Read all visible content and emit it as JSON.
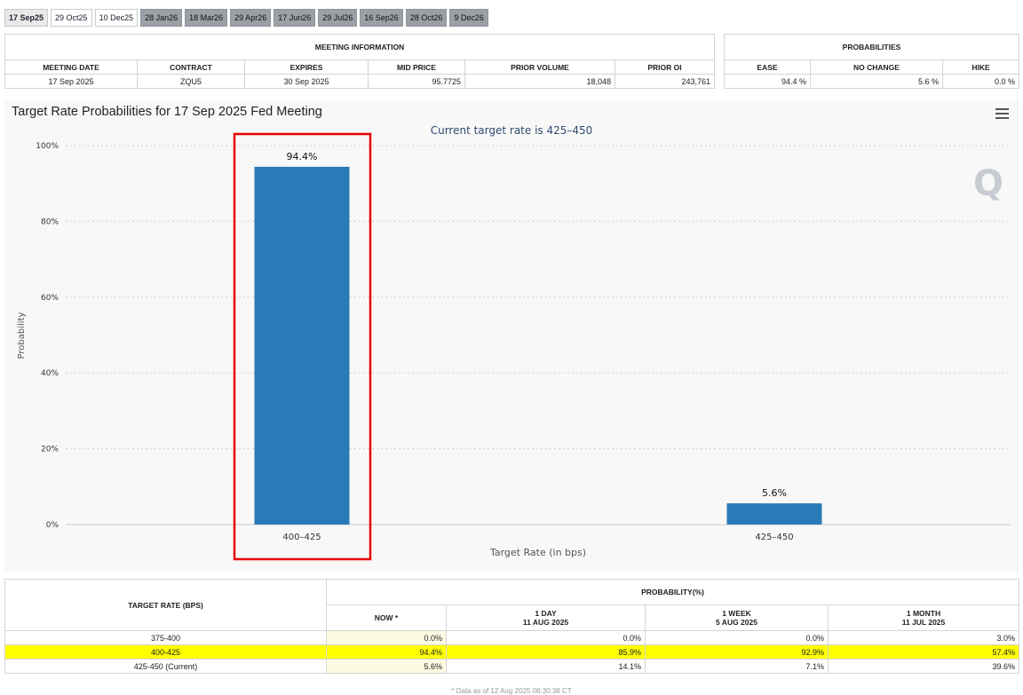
{
  "tabs": [
    {
      "label": "17 Sep25",
      "state": "active"
    },
    {
      "label": "29 Oct25",
      "state": "normal"
    },
    {
      "label": "10 Dec25",
      "state": "normal"
    },
    {
      "label": "28 Jan26",
      "state": "future"
    },
    {
      "label": "18 Mar26",
      "state": "future"
    },
    {
      "label": "29 Apr26",
      "state": "future"
    },
    {
      "label": "17 Jun26",
      "state": "future"
    },
    {
      "label": "29 Jul26",
      "state": "future"
    },
    {
      "label": "16 Sep26",
      "state": "future"
    },
    {
      "label": "28 Oct26",
      "state": "future"
    },
    {
      "label": "9 Dec26",
      "state": "future"
    }
  ],
  "meeting_info": {
    "header": "MEETING INFORMATION",
    "columns": [
      "MEETING DATE",
      "CONTRACT",
      "EXPIRES",
      "MID PRICE",
      "PRIOR VOLUME",
      "PRIOR OI"
    ],
    "row": {
      "meeting_date": "17 Sep 2025",
      "contract": "ZQU5",
      "expires": "30 Sep 2025",
      "mid_price": "95.7725",
      "prior_volume": "18,048",
      "prior_oi": "243,761"
    }
  },
  "probabilities": {
    "header": "PROBABILITIES",
    "columns": [
      "EASE",
      "NO CHANGE",
      "HIKE"
    ],
    "row": {
      "ease": "94.4 %",
      "no_change": "5.6 %",
      "hike": "0.0 %"
    }
  },
  "chart": {
    "title": "Target Rate Probabilities for 17 Sep 2025 Fed Meeting",
    "highlight_color": "#e60000",
    "bar_color": "#2a7ab8"
  },
  "chart_data": {
    "type": "bar",
    "title": "Target Rate Probabilities for 17 Sep 2025 Fed Meeting",
    "subtitle": "Current target rate is 425–450",
    "categories": [
      "400–425",
      "425–450"
    ],
    "values": [
      94.4,
      5.6
    ],
    "value_labels": [
      "94.4%",
      "5.6%"
    ],
    "xlabel": "Target Rate (in bps)",
    "ylabel": "Probability",
    "ylim": [
      0,
      100
    ],
    "yticks": [
      "0%",
      "20%",
      "40%",
      "60%",
      "80%",
      "100%"
    ],
    "grid": true,
    "highlighted_category": "400–425"
  },
  "bottom_table": {
    "col_target": "TARGET RATE (BPS)",
    "col_prob": "PROBABILITY(%)",
    "subcols": [
      {
        "line1": "NOW *",
        "line2": ""
      },
      {
        "line1": "1 DAY",
        "line2": "11 AUG 2025"
      },
      {
        "line1": "1 WEEK",
        "line2": "5 AUG 2025"
      },
      {
        "line1": "1 MONTH",
        "line2": "11 JUL 2025"
      }
    ],
    "rows": [
      {
        "rate": "375-400",
        "now": "0.0%",
        "day": "0.0%",
        "week": "0.0%",
        "month": "3.0%",
        "highlight": false
      },
      {
        "rate": "400-425",
        "now": "94.4%",
        "day": "85.9%",
        "week": "92.9%",
        "month": "57.4%",
        "highlight": true
      },
      {
        "rate": "425-450 (Current)",
        "now": "5.6%",
        "day": "14.1%",
        "week": "7.1%",
        "month": "39.6%",
        "highlight": false
      }
    ],
    "footnote": "* Data as of 12 Aug 2025 08:30:38 CT"
  }
}
